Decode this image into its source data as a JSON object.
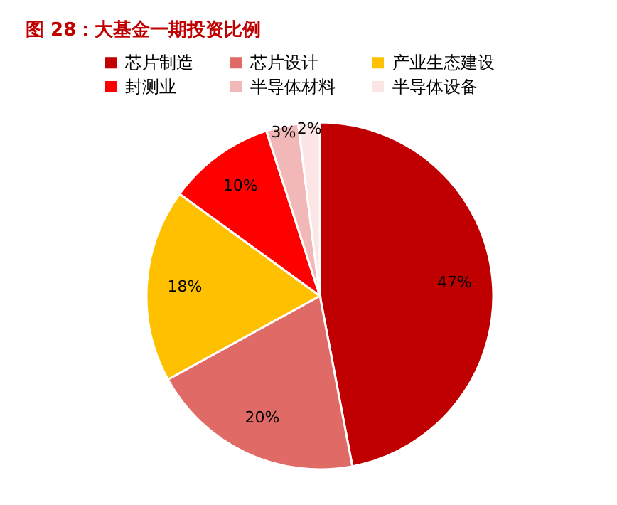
{
  "chart_data": {
    "type": "pie",
    "title": "图 28：大基金一期投资比例",
    "categories": [
      "芯片制造",
      "芯片设计",
      "产业生态建设",
      "封测业",
      "半导体材料",
      "半导体设备"
    ],
    "values": [
      47,
      20,
      18,
      10,
      3,
      2
    ],
    "colors": [
      "#c00000",
      "#e06b66",
      "#ffc000",
      "#ff0000",
      "#f2b8b8",
      "#fbe5e5"
    ],
    "value_labels": [
      "47%",
      "20%",
      "18%",
      "10%",
      "3%",
      "2%"
    ],
    "legend": "top"
  }
}
